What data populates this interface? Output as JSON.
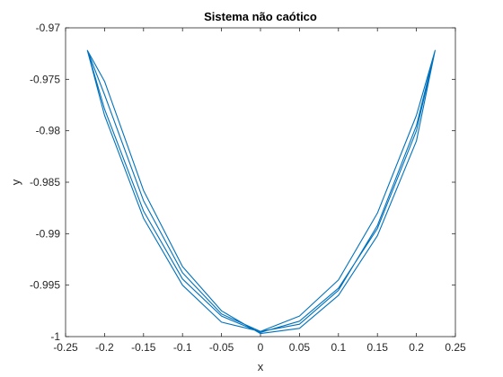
{
  "chart_data": {
    "type": "line",
    "title": "Sistema não caótico",
    "xlabel": "x",
    "ylabel": "y",
    "xlim": [
      -0.25,
      0.25
    ],
    "ylim": [
      -1,
      -0.97
    ],
    "grid": false,
    "line_color": "#0072BD",
    "xticks": [
      -0.25,
      -0.2,
      -0.15,
      -0.1,
      -0.05,
      0,
      0.05,
      0.1,
      0.15,
      0.2,
      0.25
    ],
    "xtick_labels": [
      "-0.25",
      "-0.2",
      "-0.15",
      "-0.1",
      "-0.05",
      "0",
      "0.05",
      "0.1",
      "0.15",
      "0.2",
      "0.25"
    ],
    "yticks": [
      -1,
      -0.995,
      -0.99,
      -0.985,
      -0.98,
      -0.975,
      -0.97
    ],
    "ytick_labels": [
      "-1",
      "-0.995",
      "-0.99",
      "-0.985",
      "-0.98",
      "-0.975",
      "-0.97"
    ],
    "series": [
      {
        "x": [
          -0.222,
          -0.2,
          -0.15,
          -0.1,
          -0.05,
          0,
          0.05,
          0.1,
          0.15,
          0.2,
          0.224,
          0.2,
          0.15,
          0.1,
          0.05,
          0,
          -0.05,
          -0.1,
          -0.15,
          -0.2,
          -0.222,
          -0.2,
          -0.15,
          -0.1,
          -0.05,
          0,
          0.05,
          0.1,
          0.15,
          0.2,
          0.224,
          0.2,
          0.15,
          0.1,
          0.05,
          0,
          -0.05,
          -0.1,
          -0.15,
          -0.2,
          -0.222
        ],
        "y": [
          -0.9722,
          -0.9779,
          -0.9878,
          -0.9944,
          -0.998,
          -0.9996,
          -0.9985,
          -0.9953,
          -0.9895,
          -0.98,
          -0.9722,
          -0.9795,
          -0.9892,
          -0.9955,
          -0.9988,
          -0.9995,
          -0.9978,
          -0.9938,
          -0.9868,
          -0.9765,
          -0.9722,
          -0.9785,
          -0.9885,
          -0.995,
          -0.9986,
          -0.9995,
          -0.998,
          -0.9945,
          -0.988,
          -0.9785,
          -0.9722,
          -0.981,
          -0.9902,
          -0.996,
          -0.9992,
          -0.9997,
          -0.9975,
          -0.9932,
          -0.9858,
          -0.9752,
          -0.9722
        ]
      }
    ]
  }
}
